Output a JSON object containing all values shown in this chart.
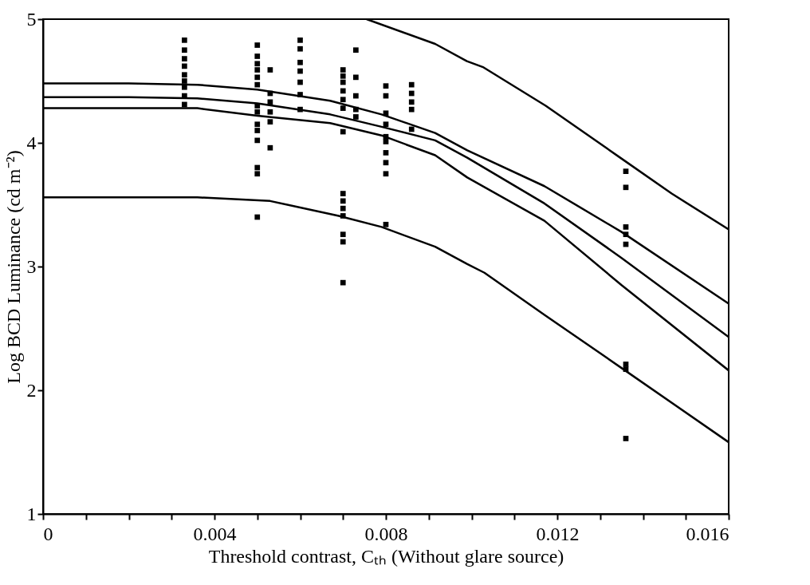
{
  "chart_data": {
    "type": "line",
    "xlabel": "Threshold contrast, Cₜₕ (Without glare source)",
    "ylabel": "Log BCD Luminance (cd m⁻²)",
    "xlim": [
      0,
      0.016
    ],
    "ylim": [
      1,
      5
    ],
    "xticks": [
      0,
      {
        "value": 0.001,
        "label": null
      },
      {
        "value": 0.002,
        "label": null
      },
      {
        "value": 0.003,
        "label": null
      },
      0.004,
      {
        "value": 0.005,
        "label": null
      },
      {
        "value": 0.006,
        "label": null
      },
      {
        "value": 0.007,
        "label": null
      },
      0.008,
      {
        "value": 0.009,
        "label": null
      },
      {
        "value": 0.01,
        "label": null
      },
      {
        "value": 0.011,
        "label": null
      },
      0.012,
      {
        "value": 0.013,
        "label": null
      },
      {
        "value": 0.014,
        "label": null
      },
      {
        "value": 0.015,
        "label": null
      },
      0.016
    ],
    "yticks": [
      1,
      2,
      3,
      4,
      5
    ],
    "grid": false,
    "series": [
      {
        "color": "#000000",
        "x": [
          0.00755,
          0.00915,
          0.00989,
          0.01028,
          0.01173,
          0.01347,
          0.01467,
          0.016
        ],
        "values": [
          5,
          4.8,
          4.66,
          4.61,
          4.3,
          3.88,
          3.59,
          3.3
        ]
      },
      {
        "type": "line",
        "color": "#000000",
        "x": [
          0,
          0.002,
          0.0036,
          0.005,
          0.0067,
          0.0079,
          0.00915,
          0.0099,
          0.0117,
          0.0135,
          0.016
        ],
        "values": [
          4.48,
          4.48,
          4.47,
          4.43,
          4.34,
          4.23,
          4.08,
          3.94,
          3.65,
          3.28,
          2.7
        ]
      },
      {
        "type": "line",
        "color": "#000000",
        "x": [
          0,
          0.002,
          0.0036,
          0.005,
          0.0067,
          0.0079,
          0.00915,
          0.0099,
          0.0117,
          0.0135,
          0.016
        ],
        "values": [
          4.37,
          4.37,
          4.36,
          4.32,
          4.23,
          4.13,
          4.02,
          3.88,
          3.51,
          3.07,
          2.43
        ]
      },
      {
        "type": "line",
        "color": "#000000",
        "x": [
          0,
          0.002,
          0.0036,
          0.005,
          0.0067,
          0.0079,
          0.00915,
          0.0099,
          0.0117,
          0.0135,
          0.016
        ],
        "values": [
          4.28,
          4.28,
          4.28,
          4.22,
          4.16,
          4.06,
          3.9,
          3.72,
          3.37,
          2.85,
          2.16
        ]
      },
      {
        "type": "line",
        "color": "#000000",
        "x": [
          0,
          0.002,
          0.0036,
          0.0053,
          0.0069,
          0.0079,
          0.00915,
          0.0099,
          0.0103,
          0.0117,
          0.0135,
          0.016
        ],
        "values": [
          3.56,
          3.56,
          3.56,
          3.53,
          3.41,
          3.32,
          3.16,
          3.02,
          2.95,
          2.61,
          2.18,
          1.58
        ]
      },
      {
        "type": "scatter",
        "marker": "square",
        "color": "#000000",
        "x": [
          0.0033,
          0.0033,
          0.0033,
          0.0033,
          0.0033,
          0.0033,
          0.0033,
          0.0033,
          0.0033,
          0.005,
          0.005,
          0.005,
          0.005,
          0.005,
          0.005,
          0.005,
          0.005,
          0.005,
          0.005,
          0.005,
          0.005,
          0.005,
          0.005,
          0.0053,
          0.0053,
          0.0053,
          0.0053,
          0.0053,
          0.0053,
          0.006,
          0.006,
          0.006,
          0.006,
          0.006,
          0.006,
          0.006,
          0.007,
          0.007,
          0.007,
          0.007,
          0.007,
          0.007,
          0.007,
          0.007,
          0.007,
          0.007,
          0.007,
          0.007,
          0.007,
          0.007,
          0.0073,
          0.0073,
          0.0073,
          0.0073,
          0.0073,
          0.008,
          0.008,
          0.008,
          0.008,
          0.008,
          0.008,
          0.008,
          0.008,
          0.008,
          0.008,
          0.0086,
          0.0086,
          0.0086,
          0.0086,
          0.0086,
          0.0136,
          0.0136,
          0.0136,
          0.0136,
          0.0136,
          0.0136,
          0.0136,
          0.0136
        ],
        "values": [
          4.83,
          4.75,
          4.68,
          4.62,
          4.55,
          4.5,
          4.45,
          4.38,
          4.31,
          4.79,
          4.7,
          4.64,
          4.59,
          4.53,
          4.47,
          4.3,
          4.25,
          4.15,
          4.1,
          4.02,
          3.8,
          3.75,
          3.4,
          4.59,
          4.4,
          4.33,
          4.25,
          4.17,
          3.96,
          4.83,
          4.76,
          4.65,
          4.58,
          4.49,
          4.39,
          4.27,
          4.59,
          4.54,
          4.49,
          4.42,
          4.35,
          4.28,
          4.09,
          3.59,
          3.53,
          3.47,
          3.41,
          3.26,
          3.2,
          2.87,
          4.75,
          4.53,
          4.38,
          4.27,
          4.21,
          4.46,
          4.38,
          4.24,
          4.15,
          4.05,
          4.01,
          3.92,
          3.84,
          3.75,
          3.34,
          4.47,
          4.4,
          4.33,
          4.27,
          4.11,
          3.77,
          3.64,
          3.32,
          3.26,
          3.18,
          2.21,
          2.17,
          1.61
        ]
      }
    ]
  }
}
